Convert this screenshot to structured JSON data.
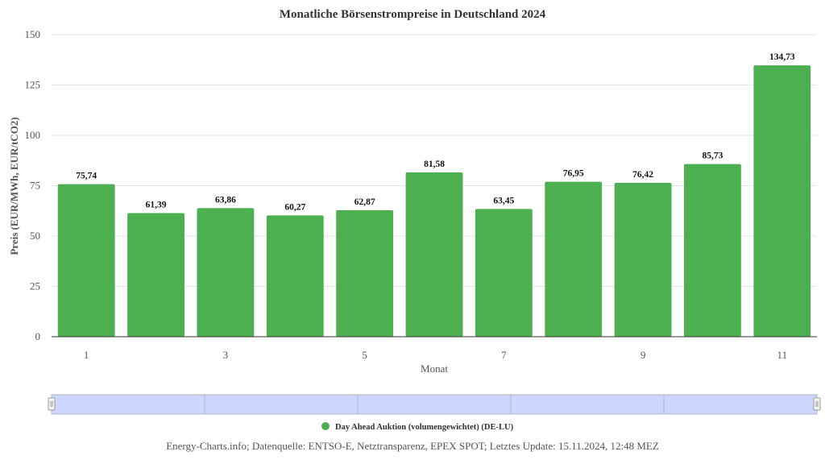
{
  "chart_data": {
    "type": "bar",
    "title": "Monatliche Börsenstrompreise in Deutschland 2024",
    "xlabel": "Monat",
    "ylabel": "Preis (EUR/MWh, EUR/tCO2)",
    "ylim": [
      0,
      150
    ],
    "yticks": [
      "0",
      "25",
      "50",
      "75",
      "100",
      "125",
      "150"
    ],
    "xticks": [
      "1",
      "3",
      "5",
      "7",
      "9",
      "11"
    ],
    "categories": [
      "1",
      "2",
      "3",
      "4",
      "5",
      "6",
      "7",
      "8",
      "9",
      "10",
      "11"
    ],
    "series": [
      {
        "name": "Day Ahead Auktion (volumengewichtet) (DE-LU)",
        "color": "#4caf50",
        "values": [
          75.74,
          61.39,
          63.86,
          60.27,
          62.87,
          81.58,
          63.45,
          76.95,
          76.42,
          85.73,
          134.73
        ],
        "labels": [
          "75,74",
          "61,39",
          "63,86",
          "60,27",
          "62,87",
          "81,58",
          "63,45",
          "76,95",
          "76,42",
          "85,73",
          "134,73"
        ]
      }
    ],
    "grid": true,
    "legend": "bottom-center"
  },
  "navigator": {
    "handle_left_icon": "drag-handle-icon",
    "handle_right_icon": "drag-handle-icon",
    "color": "#ccd6ff"
  },
  "footer": {
    "source": "Energy-Charts.info; Datenquelle: ENTSO-E, Netztransparenz, EPEX SPOT; Letztes Update: 15.11.2024, 12:48 MEZ"
  }
}
